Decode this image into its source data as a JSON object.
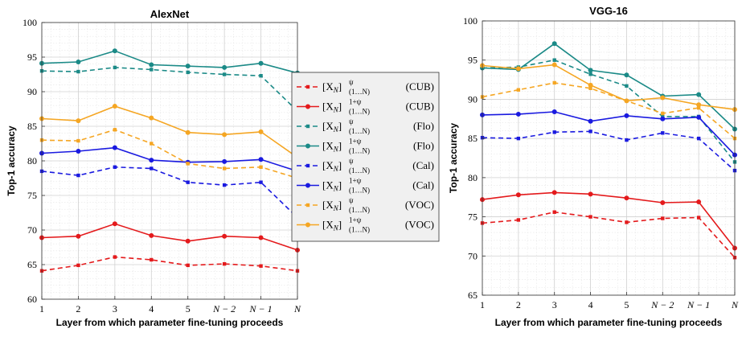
{
  "chart_data": [
    {
      "type": "line",
      "title": "AlexNet",
      "xlabel": "Layer from which parameter fine-tuning proceeds",
      "ylabel": "Top-1 accuracy",
      "categories": [
        "1",
        "2",
        "3",
        "4",
        "5",
        "N − 2",
        "N − 1",
        "N"
      ],
      "ylim": [
        60,
        100
      ],
      "yticks": [
        60,
        65,
        70,
        75,
        80,
        85,
        90,
        95,
        100
      ],
      "grid": true,
      "series": [
        {
          "name": "[X_N]^{ψ}_{(1…N)} (CUB)",
          "color": "#e41a1c",
          "style": "dashed",
          "values": [
            64.1,
            64.9,
            66.1,
            65.7,
            64.9,
            65.1,
            64.8,
            64.1
          ]
        },
        {
          "name": "[X_N]^{1+ψ}_{(1…N)} (CUB)",
          "color": "#e41a1c",
          "style": "solid",
          "values": [
            68.9,
            69.1,
            70.9,
            69.2,
            68.4,
            69.1,
            68.9,
            67.1
          ]
        },
        {
          "name": "[X_N]^{ψ}_{(1…N)} (Flo)",
          "color": "#1b8a87",
          "style": "dashed",
          "values": [
            93.0,
            92.9,
            93.5,
            93.2,
            92.8,
            92.5,
            92.3,
            87.2
          ]
        },
        {
          "name": "[X_N]^{1+ψ}_{(1…N)} (Flo)",
          "color": "#1b8a87",
          "style": "solid",
          "values": [
            94.1,
            94.3,
            95.9,
            93.9,
            93.7,
            93.5,
            94.1,
            92.7
          ]
        },
        {
          "name": "[X_N]^{ψ}_{(1…N)} (Cal)",
          "color": "#1a1ae0",
          "style": "dashed",
          "values": [
            78.5,
            77.9,
            79.1,
            78.9,
            76.9,
            76.5,
            76.9,
            71.8
          ]
        },
        {
          "name": "[X_N]^{1+ψ}_{(1…N)} (Cal)",
          "color": "#1a1ae0",
          "style": "solid",
          "values": [
            81.1,
            81.4,
            81.9,
            80.1,
            79.8,
            79.9,
            80.2,
            78.5
          ]
        },
        {
          "name": "[X_N]^{ψ}_{(1…N)} (VOC)",
          "color": "#f5a623",
          "style": "dashed",
          "values": [
            83.0,
            82.9,
            84.5,
            82.5,
            79.6,
            78.9,
            79.1,
            77.5
          ]
        },
        {
          "name": "[X_N]^{1+ψ}_{(1…N)} (VOC)",
          "color": "#f5a623",
          "style": "solid",
          "values": [
            86.1,
            85.8,
            87.9,
            86.2,
            84.1,
            83.8,
            84.2,
            80.5
          ]
        }
      ]
    },
    {
      "type": "line",
      "title": "VGG-16",
      "xlabel": "Layer from which parameter fine-tuning proceeds",
      "ylabel": "Top-1 accuracy",
      "categories": [
        "1",
        "2",
        "3",
        "4",
        "5",
        "N − 2",
        "N − 1",
        "N"
      ],
      "ylim": [
        65,
        100
      ],
      "yticks": [
        65,
        70,
        75,
        80,
        85,
        90,
        95,
        100
      ],
      "grid": true,
      "series": [
        {
          "name": "[X_N]^{ψ}_{(1…N)} (CUB)",
          "color": "#e41a1c",
          "style": "dashed",
          "values": [
            74.2,
            74.6,
            75.6,
            75.0,
            74.3,
            74.8,
            74.9,
            69.8
          ]
        },
        {
          "name": "[X_N]^{1+ψ}_{(1…N)} (CUB)",
          "color": "#e41a1c",
          "style": "solid",
          "values": [
            77.2,
            77.8,
            78.1,
            77.9,
            77.4,
            76.8,
            76.9,
            71.0
          ]
        },
        {
          "name": "[X_N]^{ψ}_{(1…N)} (Flo)",
          "color": "#1b8a87",
          "style": "dashed",
          "values": [
            94.0,
            94.1,
            95.0,
            93.2,
            91.7,
            87.8,
            87.8,
            82.0
          ]
        },
        {
          "name": "[X_N]^{1+ψ}_{(1…N)} (Flo)",
          "color": "#1b8a87",
          "style": "solid",
          "values": [
            94.0,
            93.8,
            97.1,
            93.7,
            93.1,
            90.4,
            90.6,
            86.2
          ]
        },
        {
          "name": "[X_N]^{ψ}_{(1…N)} (Cal)",
          "color": "#1a1ae0",
          "style": "dashed",
          "values": [
            85.1,
            85.0,
            85.8,
            85.9,
            84.8,
            85.7,
            85.0,
            80.9
          ]
        },
        {
          "name": "[X_N]^{1+ψ}_{(1…N)} (Cal)",
          "color": "#1a1ae0",
          "style": "solid",
          "values": [
            88.0,
            88.1,
            88.4,
            87.2,
            87.9,
            87.5,
            87.7,
            82.9
          ]
        },
        {
          "name": "[X_N]^{ψ}_{(1…N)} (VOC)",
          "color": "#f5a623",
          "style": "dashed",
          "values": [
            90.3,
            91.2,
            92.1,
            91.4,
            89.8,
            88.2,
            88.9,
            85.0
          ]
        },
        {
          "name": "[X_N]^{1+ψ}_{(1…N)} (VOC)",
          "color": "#f5a623",
          "style": "solid",
          "values": [
            94.3,
            93.9,
            94.4,
            91.8,
            89.8,
            90.2,
            89.3,
            88.7
          ]
        }
      ]
    }
  ],
  "legend": {
    "placement": "between-plots",
    "entries": [
      {
        "base": "[X",
        "sub": "N",
        "close": "]",
        "sup": "ψ",
        "lower": "(1…N)",
        "dataset": "(CUB)",
        "color": "#e41a1c",
        "style": "dashed"
      },
      {
        "base": "[X",
        "sub": "N",
        "close": "]",
        "sup": "1+ψ",
        "lower": "(1…N)",
        "dataset": "(CUB)",
        "color": "#e41a1c",
        "style": "solid"
      },
      {
        "base": "[X",
        "sub": "N",
        "close": "]",
        "sup": "ψ",
        "lower": "(1…N)",
        "dataset": "(Flo)",
        "color": "#1b8a87",
        "style": "dashed"
      },
      {
        "base": "[X",
        "sub": "N",
        "close": "]",
        "sup": "1+ψ",
        "lower": "(1…N)",
        "dataset": "(Flo)",
        "color": "#1b8a87",
        "style": "solid"
      },
      {
        "base": "[X",
        "sub": "N",
        "close": "]",
        "sup": "ψ",
        "lower": "(1…N)",
        "dataset": "(Cal)",
        "color": "#1a1ae0",
        "style": "dashed"
      },
      {
        "base": "[X",
        "sub": "N",
        "close": "]",
        "sup": "1+ψ",
        "lower": "(1…N)",
        "dataset": "(Cal)",
        "color": "#1a1ae0",
        "style": "solid"
      },
      {
        "base": "[X",
        "sub": "N",
        "close": "]",
        "sup": "ψ",
        "lower": "(1…N)",
        "dataset": "(VOC)",
        "color": "#f5a623",
        "style": "dashed"
      },
      {
        "base": "[X",
        "sub": "N",
        "close": "]",
        "sup": "1+ψ",
        "lower": "(1…N)",
        "dataset": "(VOC)",
        "color": "#f5a623",
        "style": "solid"
      }
    ]
  }
}
